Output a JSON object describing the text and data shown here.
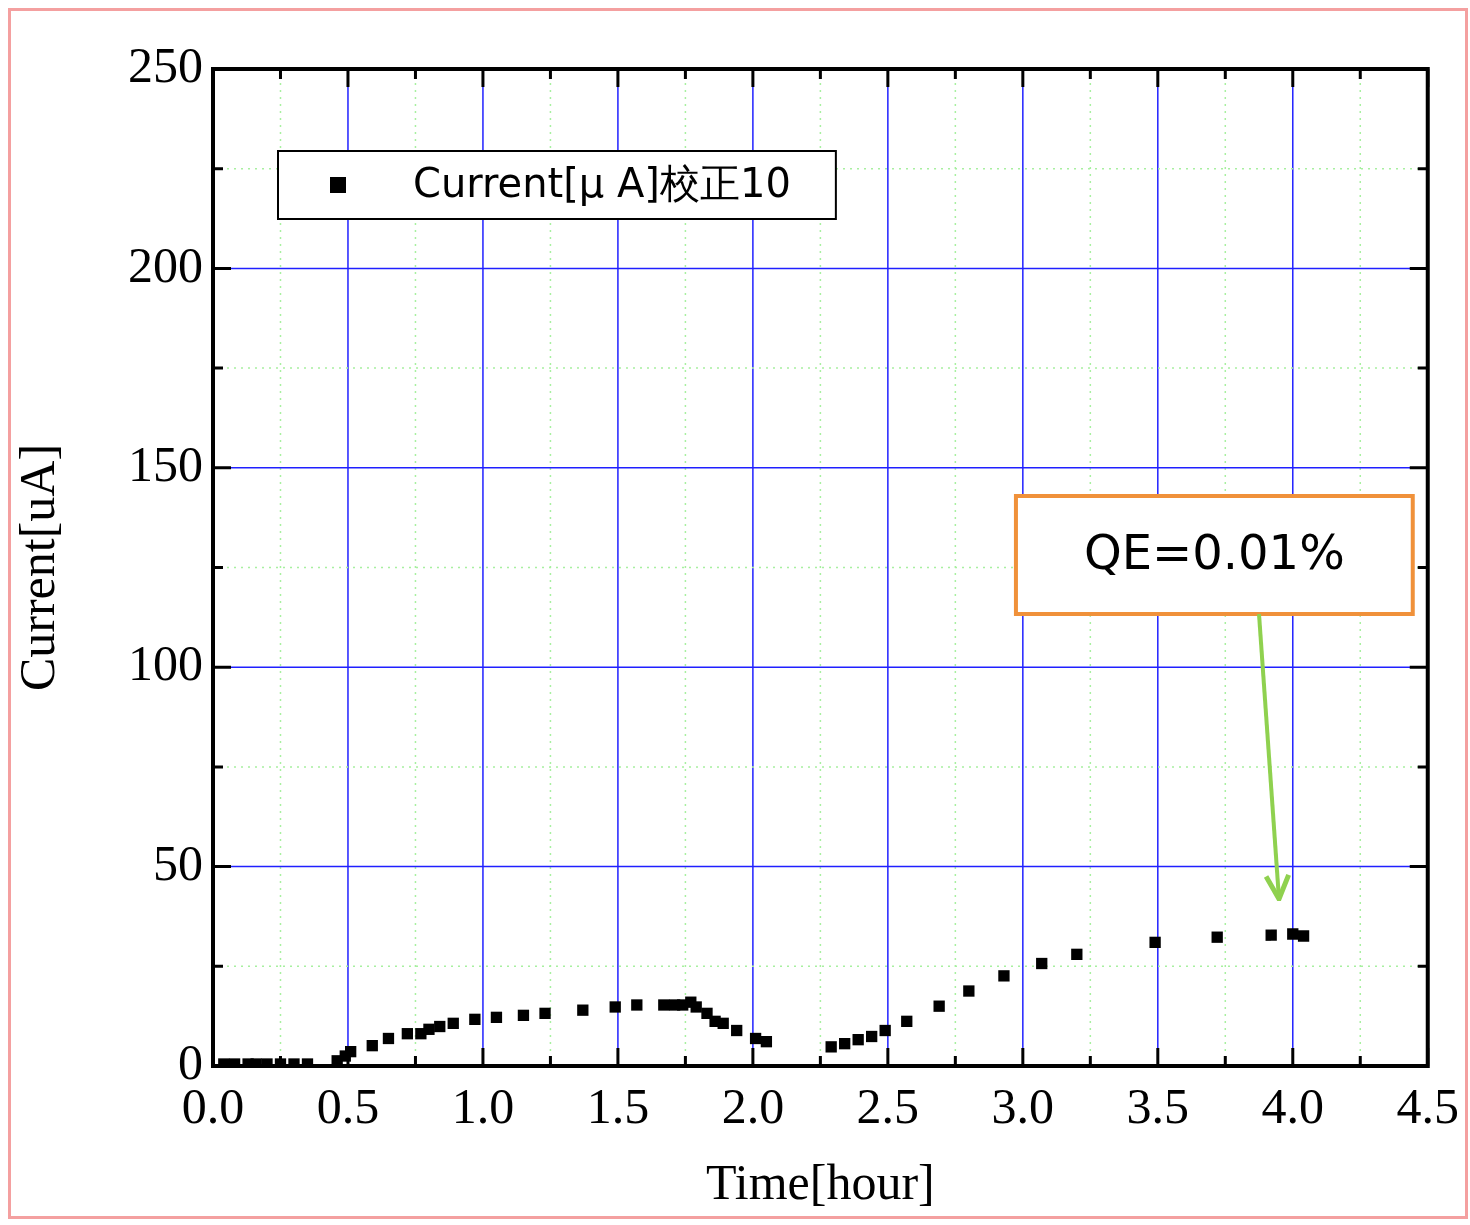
{
  "chart_data": {
    "type": "scatter",
    "xlabel": "Time[hour]",
    "ylabel": "Current[uA]",
    "xlim": [
      0,
      4.5
    ],
    "ylim": [
      0,
      250
    ],
    "xticks": [
      {
        "value": 0,
        "label": "0.0"
      },
      {
        "value": 0.25,
        "label": null
      },
      {
        "value": 0.5,
        "label": "0.5"
      },
      {
        "value": 0.75,
        "label": null
      },
      {
        "value": 1,
        "label": "1.0"
      },
      {
        "value": 1.25,
        "label": null
      },
      {
        "value": 1.5,
        "label": "1.5"
      },
      {
        "value": 1.75,
        "label": null
      },
      {
        "value": 2,
        "label": "2.0"
      },
      {
        "value": 2.25,
        "label": null
      },
      {
        "value": 2.5,
        "label": "2.5"
      },
      {
        "value": 2.75,
        "label": null
      },
      {
        "value": 3,
        "label": "3.0"
      },
      {
        "value": 3.25,
        "label": null
      },
      {
        "value": 3.5,
        "label": "3.5"
      },
      {
        "value": 3.75,
        "label": null
      },
      {
        "value": 4,
        "label": "4.0"
      },
      {
        "value": 4.25,
        "label": null
      },
      {
        "value": 4.5,
        "label": "4.5"
      }
    ],
    "yticks": [
      0,
      {
        "value": 25,
        "label": null
      },
      50,
      {
        "value": 75,
        "label": null
      },
      100,
      {
        "value": 125,
        "label": null
      },
      150,
      {
        "value": 175,
        "label": null
      },
      200,
      {
        "value": 225,
        "label": null
      },
      250
    ],
    "grid": true,
    "legend": "top left",
    "marker": "square",
    "annotations": [
      "QE=0.01%"
    ],
    "series": [
      {
        "name": "Current[μ A]校正10",
        "color": "#000000",
        "x": [
          0.04,
          0.08,
          0.13,
          0.16,
          0.2,
          0.25,
          0.3,
          0.35,
          0.46,
          0.49,
          0.51,
          0.59,
          0.65,
          0.72,
          0.77,
          0.8,
          0.84,
          0.89,
          0.97,
          1.05,
          1.15,
          1.23,
          1.37,
          1.49,
          1.57,
          1.67,
          1.71,
          1.74,
          1.77,
          1.79,
          1.83,
          1.86,
          1.89,
          1.94,
          2.01,
          2.05,
          2.29,
          2.34,
          2.39,
          2.44,
          2.49,
          2.57,
          2.69,
          2.8,
          2.93,
          3.07,
          3.2,
          3.49,
          3.72,
          3.92,
          4.0,
          4.04
        ],
        "values": [
          0.5,
          0.5,
          0.5,
          0.5,
          0.5,
          0.5,
          0.5,
          0.5,
          1.3,
          2.5,
          3.6,
          5.1,
          6.9,
          8.1,
          8.1,
          9.2,
          9.9,
          10.7,
          11.7,
          12.2,
          12.7,
          13.2,
          14.0,
          14.8,
          15.3,
          15.3,
          15.3,
          15.3,
          16.0,
          14.8,
          13.2,
          11.2,
          10.7,
          8.9,
          6.9,
          6.1,
          4.8,
          5.6,
          6.6,
          7.4,
          8.9,
          11.2,
          15.0,
          18.8,
          22.6,
          25.7,
          28.0,
          31.0,
          32.3,
          32.8,
          33.1,
          32.6
        ]
      }
    ]
  }
}
